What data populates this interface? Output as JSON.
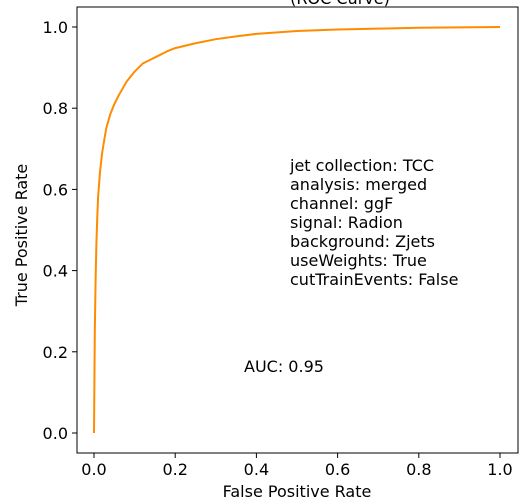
{
  "chart_data": {
    "type": "line",
    "title": "(ROC Curve)",
    "xlabel": "False Positive Rate",
    "ylabel": "True Positive Rate",
    "xlim": [
      0.0,
      1.0
    ],
    "ylim": [
      0.0,
      1.0
    ],
    "xticks": [
      "0.0",
      "0.2",
      "0.4",
      "0.6",
      "0.8",
      "1.0"
    ],
    "yticks": [
      "0.0",
      "0.2",
      "0.4",
      "0.6",
      "0.8",
      "1.0"
    ],
    "grid": false,
    "colors": {
      "roc": "#ff8c00",
      "axes": "#000000"
    },
    "series": [
      {
        "x": [
          0.0,
          0.002,
          0.004,
          0.006,
          0.008,
          0.01,
          0.015,
          0.02,
          0.03,
          0.04,
          0.05,
          0.06,
          0.08,
          0.1,
          0.12,
          0.14,
          0.16,
          0.18,
          0.2,
          0.25,
          0.3,
          0.35,
          0.4,
          0.5,
          0.6,
          0.7,
          0.8,
          0.9,
          1.0
        ],
        "y": [
          0.0,
          0.25,
          0.38,
          0.47,
          0.53,
          0.58,
          0.645,
          0.69,
          0.75,
          0.785,
          0.81,
          0.83,
          0.865,
          0.89,
          0.91,
          0.92,
          0.93,
          0.94,
          0.948,
          0.96,
          0.97,
          0.977,
          0.983,
          0.99,
          0.994,
          0.996,
          0.998,
          0.999,
          1.0
        ]
      }
    ],
    "annotations": {
      "info": [
        "jet collection: TCC",
        "analysis: merged",
        "channel: ggF",
        "signal: Radion",
        "background: Zjets",
        "useWeights: True",
        "cutTrainEvents: False"
      ],
      "auc": "AUC: 0.95"
    }
  }
}
